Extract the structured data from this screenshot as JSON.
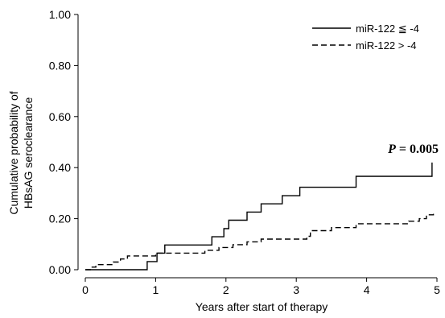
{
  "chart_data": {
    "type": "line",
    "xlabel": "Years after start of therapy",
    "ylabel_line1": "Cumulative probability of",
    "ylabel_line2": "HBsAG seroclearance",
    "xlim": [
      0,
      5
    ],
    "ylim": [
      0,
      1
    ],
    "x_ticks": [
      "0",
      "1",
      "2",
      "3",
      "4",
      "5"
    ],
    "y_ticks": [
      "0.00",
      "0.20",
      "0.40",
      "0.60",
      "0.80",
      "1.00"
    ],
    "grid": false,
    "legend_position": "top-right",
    "annotation_p_symbol": "P",
    "annotation_p_value": "= 0.005",
    "series": [
      {
        "name": "miR-122 ≦ -4",
        "line_style": "solid",
        "points": [
          [
            0,
            0
          ],
          [
            0.88,
            0
          ],
          [
            0.88,
            0.032
          ],
          [
            1.02,
            0.032
          ],
          [
            1.02,
            0.065
          ],
          [
            1.13,
            0.065
          ],
          [
            1.13,
            0.097
          ],
          [
            1.8,
            0.097
          ],
          [
            1.8,
            0.129
          ],
          [
            1.97,
            0.129
          ],
          [
            1.97,
            0.161
          ],
          [
            2.04,
            0.161
          ],
          [
            2.04,
            0.194
          ],
          [
            2.3,
            0.194
          ],
          [
            2.3,
            0.226
          ],
          [
            2.5,
            0.226
          ],
          [
            2.5,
            0.258
          ],
          [
            2.8,
            0.258
          ],
          [
            2.8,
            0.29
          ],
          [
            3.05,
            0.29
          ],
          [
            3.05,
            0.323
          ],
          [
            3.85,
            0.323
          ],
          [
            3.85,
            0.366
          ],
          [
            4.93,
            0.366
          ],
          [
            4.93,
            0.42
          ]
        ]
      },
      {
        "name": "miR-122 > -4",
        "line_style": "dashed",
        "points": [
          [
            0,
            0
          ],
          [
            0.08,
            0
          ],
          [
            0.08,
            0.01
          ],
          [
            0.15,
            0.01
          ],
          [
            0.15,
            0.02
          ],
          [
            0.4,
            0.02
          ],
          [
            0.4,
            0.03
          ],
          [
            0.5,
            0.03
          ],
          [
            0.5,
            0.042
          ],
          [
            0.6,
            0.042
          ],
          [
            0.6,
            0.054
          ],
          [
            1.0,
            0.054
          ],
          [
            1.0,
            0.065
          ],
          [
            1.7,
            0.065
          ],
          [
            1.7,
            0.076
          ],
          [
            1.9,
            0.076
          ],
          [
            1.9,
            0.087
          ],
          [
            2.1,
            0.087
          ],
          [
            2.1,
            0.098
          ],
          [
            2.3,
            0.098
          ],
          [
            2.3,
            0.109
          ],
          [
            2.5,
            0.109
          ],
          [
            2.5,
            0.12
          ],
          [
            3.15,
            0.12
          ],
          [
            3.15,
            0.131
          ],
          [
            3.2,
            0.131
          ],
          [
            3.2,
            0.153
          ],
          [
            3.5,
            0.153
          ],
          [
            3.5,
            0.165
          ],
          [
            3.85,
            0.165
          ],
          [
            3.85,
            0.18
          ],
          [
            4.6,
            0.18
          ],
          [
            4.6,
            0.19
          ],
          [
            4.75,
            0.19
          ],
          [
            4.75,
            0.2
          ],
          [
            4.85,
            0.2
          ],
          [
            4.85,
            0.215
          ],
          [
            4.95,
            0.215
          ],
          [
            4.95,
            0.225
          ]
        ]
      }
    ]
  }
}
